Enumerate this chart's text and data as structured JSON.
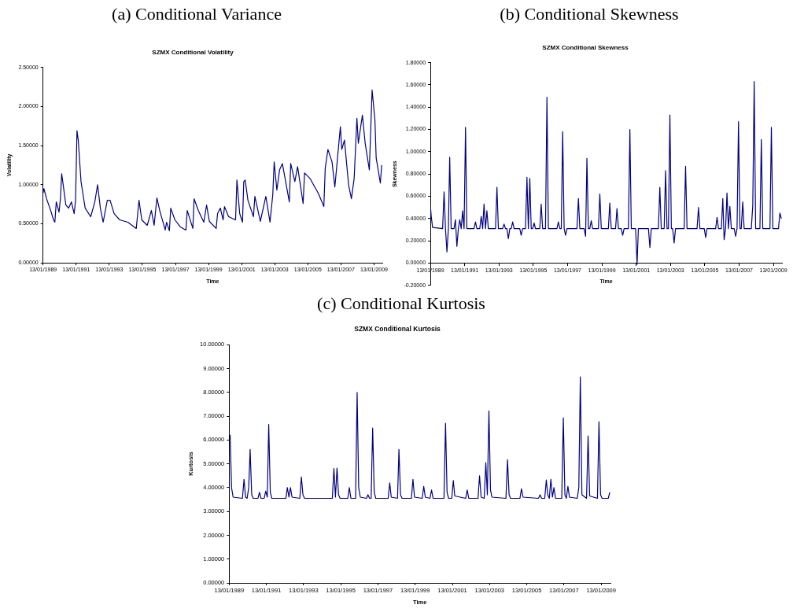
{
  "chart_data": [
    {
      "type": "line",
      "subtitle": "(a) Conditional Variance",
      "title": "SZMX Conditional Volatility",
      "xlabel": "Time",
      "ylabel": "Volatility",
      "marker": "none",
      "xlim": [
        "1989-01-13",
        "2009-07-15"
      ],
      "xticks": [
        {
          "value": "1989-01-13",
          "label": "13/01/1989"
        },
        {
          "value": "1991-01-13",
          "label": "13/01/1991"
        },
        {
          "value": "1993-01-13",
          "label": "13/01/1993"
        },
        {
          "value": "1995-01-13",
          "label": "13/01/1995"
        },
        {
          "value": "1997-01-13",
          "label": "13/01/1997"
        },
        {
          "value": "1999-01-13",
          "label": "13/01/1999"
        },
        {
          "value": "2001-01-13",
          "label": "13/01/2001"
        },
        {
          "value": "2003-01-13",
          "label": "13/01/2003"
        },
        {
          "value": "2005-01-13",
          "label": "13/01/2005"
        },
        {
          "value": "2007-01-13",
          "label": "13/01/2007"
        },
        {
          "value": "2009-01-13",
          "label": "13/01/2009"
        }
      ],
      "ylim": [
        0,
        2.5
      ],
      "yticks": [
        {
          "value": 0,
          "label": "0.00000"
        },
        {
          "value": 0.5,
          "label": "0.50000"
        },
        {
          "value": 1,
          "label": "1.00000"
        },
        {
          "value": 1.5,
          "label": "1.50000"
        },
        {
          "value": 2,
          "label": "2.00000"
        },
        {
          "value": 2.5,
          "label": "2.50000"
        }
      ],
      "series": [
        {
          "color": "#000080",
          "x": [
            "1989-01-13",
            "1989-02",
            "1989-04",
            "1989-07",
            "1989-09",
            "1989-10",
            "1989-11",
            "1990-01",
            "1990-02",
            "1990-03",
            "1990-06",
            "1990-08",
            "1990-10",
            "1990-12",
            "1991-01",
            "1991-02",
            "1991-03",
            "1991-05",
            "1991-08",
            "1991-12",
            "1992-03",
            "1992-05",
            "1992-07",
            "1992-09",
            "1992-12",
            "1993-02",
            "1993-05",
            "1993-09",
            "1994-03",
            "1994-09",
            "1994-11",
            "1995-01",
            "1995-05",
            "1995-08",
            "1995-10",
            "1995-12",
            "1996-02",
            "1996-06",
            "1996-07",
            "1996-09",
            "1996-10",
            "1997-01",
            "1997-05",
            "1997-09",
            "1997-10",
            "1998-02",
            "1998-03",
            "1998-06",
            "1998-10",
            "1998-12",
            "1999-02",
            "1999-07",
            "1999-08",
            "1999-10",
            "1999-12",
            "2000-01",
            "2000-04",
            "2000-09",
            "2000-10",
            "2000-12",
            "2001-02",
            "2001-03",
            "2001-04",
            "2001-06",
            "2001-10",
            "2001-11",
            "2002-03",
            "2002-07",
            "2002-10",
            "2002-12",
            "2003-01",
            "2003-03",
            "2003-05",
            "2003-07",
            "2003-12",
            "2004-01",
            "2004-04",
            "2004-06",
            "2004-10",
            "2004-11",
            "2005-03",
            "2005-09",
            "2006-01",
            "2006-02",
            "2006-04",
            "2006-07",
            "2006-09",
            "2007-01",
            "2007-02",
            "2007-04",
            "2007-07",
            "2007-09",
            "2007-11",
            "2008-01",
            "2008-02",
            "2008-05",
            "2008-07",
            "2008-10",
            "2008-12",
            "2009-02",
            "2009-03",
            "2009-06",
            "2009-07"
          ],
          "values": [
            0.89,
            0.95,
            0.82,
            0.67,
            0.55,
            0.52,
            0.78,
            0.65,
            0.82,
            1.14,
            0.74,
            0.7,
            0.78,
            0.63,
            0.8,
            1.69,
            1.57,
            1.04,
            0.7,
            0.59,
            0.78,
            1.0,
            0.7,
            0.52,
            0.8,
            0.8,
            0.63,
            0.55,
            0.52,
            0.44,
            0.8,
            0.55,
            0.48,
            0.67,
            0.48,
            0.83,
            0.67,
            0.42,
            0.52,
            0.41,
            0.7,
            0.55,
            0.46,
            0.42,
            0.67,
            0.44,
            0.82,
            0.67,
            0.52,
            0.74,
            0.53,
            0.44,
            0.63,
            0.7,
            0.55,
            0.72,
            0.59,
            0.55,
            1.06,
            0.63,
            0.52,
            1.04,
            1.06,
            0.8,
            0.59,
            0.85,
            0.53,
            0.85,
            0.52,
            0.87,
            1.29,
            0.93,
            1.19,
            1.27,
            0.78,
            1.27,
            1.04,
            1.23,
            0.76,
            1.15,
            1.08,
            0.89,
            0.72,
            1.21,
            1.45,
            1.29,
            0.97,
            1.74,
            1.45,
            1.57,
            1.0,
            0.82,
            1.08,
            1.85,
            1.53,
            1.89,
            1.53,
            1.19,
            2.21,
            1.83,
            1.34,
            1.02,
            1.25
          ]
        }
      ]
    },
    {
      "type": "line",
      "subtitle": "(b) Conditional Skewness",
      "title": "SZMX Conditional Skewness",
      "xlabel": "Time",
      "ylabel": "Skewness",
      "marker": "none",
      "xlim": [
        "1989-01-13",
        "2009-07-15"
      ],
      "xticks": [
        {
          "value": "1989-01-13",
          "label": "13/01/1989"
        },
        {
          "value": "1991-01-13",
          "label": "13/01/1991"
        },
        {
          "value": "1993-01-13",
          "label": "13/01/1993"
        },
        {
          "value": "1995-01-13",
          "label": "13/01/1995"
        },
        {
          "value": "1997-01-13",
          "label": "13/01/1997"
        },
        {
          "value": "1999-01-13",
          "label": "13/01/1999"
        },
        {
          "value": "2001-01-13",
          "label": "13/01/2001"
        },
        {
          "value": "2003-01-13",
          "label": "13/01/2003"
        },
        {
          "value": "2005-01-13",
          "label": "13/01/2005"
        },
        {
          "value": "2007-01-13",
          "label": "13/01/2007"
        },
        {
          "value": "2009-01-13",
          "label": "13/01/2009"
        }
      ],
      "ylim": [
        -0.2,
        1.8
      ],
      "yticks": [
        {
          "value": -0.2,
          "label": "-0.20000"
        },
        {
          "value": 0,
          "label": "0.00000"
        },
        {
          "value": 0.2,
          "label": "0.20000"
        },
        {
          "value": 0.4,
          "label": "0.40000"
        },
        {
          "value": 0.6,
          "label": "0.60000"
        },
        {
          "value": 0.8,
          "label": "0.80000"
        },
        {
          "value": 1,
          "label": "1.00000"
        },
        {
          "value": 1.2,
          "label": "1.20000"
        },
        {
          "value": 1.4,
          "label": "1.40000"
        },
        {
          "value": 1.6,
          "label": "1.60000"
        },
        {
          "value": 1.8,
          "label": "1.80000"
        }
      ],
      "series": [
        {
          "color": "#000080",
          "x": [
            "1989-01-13",
            "1989-02",
            "1989-03",
            "1989-10",
            "1989-11",
            "1989-12",
            "1990-01",
            "1990-02",
            "1990-03",
            "1990-04",
            "1990-06",
            "1990-07",
            "1990-08",
            "1990-09",
            "1990-10",
            "1990-11",
            "1990-12",
            "1991-01",
            "1991-02",
            "1991-03",
            "1991-08",
            "1991-09",
            "1991-10",
            "1991-12",
            "1992-01",
            "1992-02",
            "1992-03",
            "1992-04",
            "1992-05",
            "1992-06",
            "1992-11",
            "1992-12",
            "1993-01",
            "1993-04",
            "1993-05",
            "1993-06",
            "1993-07",
            "1993-08",
            "1993-09",
            "1993-10",
            "1993-11",
            "1993-12",
            "1994-04",
            "1994-05",
            "1994-06",
            "1994-08",
            "1994-09",
            "1994-10",
            "1994-11",
            "1994-12",
            "1995-01",
            "1995-02",
            "1995-03",
            "1995-06",
            "1995-07",
            "1995-08",
            "1995-10",
            "1995-11",
            "1995-12",
            "1996-06",
            "1996-07",
            "1996-08",
            "1996-09",
            "1996-10",
            "1996-11",
            "1996-12",
            "1997-01",
            "1997-08",
            "1997-09",
            "1997-10",
            "1998-01",
            "1998-02",
            "1998-03",
            "1998-04",
            "1998-05",
            "1998-06",
            "1998-07",
            "1998-11",
            "1998-12",
            "1999-01",
            "1999-06",
            "1999-07",
            "1999-08",
            "1999-11",
            "1999-12",
            "2000-01",
            "2000-03",
            "2000-04",
            "2000-05",
            "2000-08",
            "2000-09",
            "2000-10",
            "2001-01",
            "2001-02",
            "2001-03",
            "2001-10",
            "2001-11",
            "2001-12",
            "2002-05",
            "2002-06",
            "2002-07",
            "2002-09",
            "2002-10",
            "2002-11",
            "2002-12",
            "2003-01",
            "2003-02",
            "2003-03",
            "2003-04",
            "2003-05",
            "2003-11",
            "2003-12",
            "2004-01",
            "2004-08",
            "2004-09",
            "2004-10",
            "2005-01",
            "2005-02",
            "2005-03",
            "2005-09",
            "2005-10",
            "2005-11",
            "2006-01",
            "2006-02",
            "2006-03",
            "2006-04",
            "2006-05",
            "2006-06",
            "2006-07",
            "2006-08",
            "2006-10",
            "2006-11",
            "2006-12",
            "2007-01",
            "2007-02",
            "2007-03",
            "2007-04",
            "2007-05",
            "2007-10",
            "2007-11",
            "2007-12",
            "2008-01",
            "2008-04",
            "2008-05",
            "2008-06",
            "2008-11",
            "2008-12",
            "2009-01",
            "2009-05",
            "2009-06",
            "2009-07"
          ],
          "values": [
            0.52,
            0.42,
            0.32,
            0.31,
            0.64,
            0.31,
            0.1,
            0.31,
            0.95,
            0.31,
            0.31,
            0.39,
            0.15,
            0.31,
            0.39,
            0.31,
            0.47,
            0.31,
            1.22,
            0.31,
            0.31,
            0.37,
            0.31,
            0.31,
            0.42,
            0.31,
            0.53,
            0.31,
            0.47,
            0.31,
            0.31,
            0.68,
            0.31,
            0.31,
            0.35,
            0.31,
            0.31,
            0.22,
            0.31,
            0.31,
            0.37,
            0.31,
            0.31,
            0.25,
            0.31,
            0.31,
            0.77,
            0.31,
            0.76,
            0.31,
            0.31,
            0.36,
            0.31,
            0.31,
            0.53,
            0.31,
            0.31,
            1.49,
            0.31,
            0.31,
            0.37,
            0.31,
            0.31,
            1.18,
            0.31,
            0.25,
            0.31,
            0.31,
            0.58,
            0.31,
            0.31,
            0.24,
            0.94,
            0.31,
            0.31,
            0.38,
            0.31,
            0.31,
            0.62,
            0.31,
            0.31,
            0.54,
            0.31,
            0.31,
            0.49,
            0.31,
            0.31,
            0.25,
            0.31,
            0.31,
            1.2,
            0.31,
            0.31,
            -0.01,
            0.31,
            0.31,
            0.14,
            0.31,
            0.31,
            0.68,
            0.31,
            0.31,
            0.83,
            0.31,
            0.31,
            1.33,
            0.31,
            0.31,
            0.18,
            0.31,
            0.31,
            0.87,
            0.31,
            0.31,
            0.5,
            0.31,
            0.31,
            0.23,
            0.31,
            0.31,
            0.41,
            0.31,
            0.31,
            0.58,
            0.21,
            0.31,
            0.63,
            0.31,
            0.51,
            0.31,
            0.31,
            0.24,
            0.31,
            1.27,
            0.31,
            0.31,
            0.55,
            0.31,
            0.31,
            0.52,
            1.63,
            0.31,
            0.31,
            1.11,
            0.31,
            0.31,
            1.22,
            0.31,
            0.31,
            0.45,
            0.4
          ]
        }
      ]
    },
    {
      "type": "line",
      "subtitle": "(c) Conditional Kurtosis",
      "title": "SZMX Conditional Kurtosis",
      "xlabel": "Time",
      "ylabel": "Kurtosis",
      "marker": "none",
      "xlim": [
        "1989-01-13",
        "2009-07-15"
      ],
      "xticks": [
        {
          "value": "1989-01-13",
          "label": "13/01/1989"
        },
        {
          "value": "1991-01-13",
          "label": "13/01/1991"
        },
        {
          "value": "1993-01-13",
          "label": "13/01/1993"
        },
        {
          "value": "1995-01-13",
          "label": "13/01/1995"
        },
        {
          "value": "1997-01-13",
          "label": "13/01/1997"
        },
        {
          "value": "1999-01-13",
          "label": "13/01/1999"
        },
        {
          "value": "2001-01-13",
          "label": "13/01/2001"
        },
        {
          "value": "2003-01-13",
          "label": "13/01/2003"
        },
        {
          "value": "2005-01-13",
          "label": "13/01/2005"
        },
        {
          "value": "2007-01-13",
          "label": "13/01/2007"
        },
        {
          "value": "2009-01-13",
          "label": "13/01/2009"
        }
      ],
      "ylim": [
        0,
        10
      ],
      "yticks": [
        {
          "value": 0,
          "label": "0.00000"
        },
        {
          "value": 1,
          "label": "1.00000"
        },
        {
          "value": 2,
          "label": "2.00000"
        },
        {
          "value": 3,
          "label": "3.00000"
        },
        {
          "value": 4,
          "label": "4.00000"
        },
        {
          "value": 5,
          "label": "5.00000"
        },
        {
          "value": 6,
          "label": "6.00000"
        },
        {
          "value": 7,
          "label": "7.00000"
        },
        {
          "value": 8,
          "label": "8.00000"
        },
        {
          "value": 9,
          "label": "9.00000"
        },
        {
          "value": 10,
          "label": "10.00000"
        }
      ],
      "series": [
        {
          "color": "#000080",
          "x": [
            "1989-01-13",
            "1989-02",
            "1989-03",
            "1989-04",
            "1989-10",
            "1989-11",
            "1989-12",
            "1990-01",
            "1990-02",
            "1990-03",
            "1990-04",
            "1990-05",
            "1990-08",
            "1990-09",
            "1990-10",
            "1990-12",
            "1991-01",
            "1991-02",
            "1991-03",
            "1991-04",
            "1991-05",
            "1992-02",
            "1992-03",
            "1992-04",
            "1992-05",
            "1992-06",
            "1992-11",
            "1992-12",
            "1993-01",
            "1993-02",
            "1994-08",
            "1994-09",
            "1994-10",
            "1994-11",
            "1994-12",
            "1995-01",
            "1995-06",
            "1995-07",
            "1995-08",
            "1995-11",
            "1995-12",
            "1996-01",
            "1996-02",
            "1996-06",
            "1996-07",
            "1996-08",
            "1996-09",
            "1996-10",
            "1996-11",
            "1996-12",
            "1997-08",
            "1997-09",
            "1997-10",
            "1998-02",
            "1998-03",
            "1998-04",
            "1998-05",
            "1998-11",
            "1998-12",
            "1999-01",
            "1999-06",
            "1999-07",
            "1999-08",
            "1999-11",
            "1999-12",
            "2000-01",
            "2000-08",
            "2000-09",
            "2000-10",
            "2000-11",
            "2001-01",
            "2001-02",
            "2001-03",
            "2001-10",
            "2001-11",
            "2001-12",
            "2002-06",
            "2002-07",
            "2002-08",
            "2002-10",
            "2002-11",
            "2002-12",
            "2003-01",
            "2003-02",
            "2003-03",
            "2003-12",
            "2004-01",
            "2004-02",
            "2004-03",
            "2004-09",
            "2004-10",
            "2004-11",
            "2005-09",
            "2005-10",
            "2005-11",
            "2006-01",
            "2006-02",
            "2006-03",
            "2006-04",
            "2006-05",
            "2006-06",
            "2006-07",
            "2006-08",
            "2006-12",
            "2007-01",
            "2007-02",
            "2007-03",
            "2007-04",
            "2007-05",
            "2007-10",
            "2007-11",
            "2007-12",
            "2008-01",
            "2008-04",
            "2008-05",
            "2008-06",
            "2008-11",
            "2008-12",
            "2009-01",
            "2009-02",
            "2009-06",
            "2009-07"
          ],
          "values": [
            6.2,
            6.2,
            4.0,
            3.6,
            3.55,
            4.35,
            3.6,
            3.55,
            4.0,
            5.6,
            3.7,
            3.55,
            3.55,
            3.8,
            3.55,
            3.55,
            3.85,
            3.6,
            6.65,
            3.8,
            3.55,
            3.55,
            4.0,
            3.6,
            4.0,
            3.6,
            3.55,
            4.45,
            3.7,
            3.55,
            3.55,
            4.8,
            3.6,
            4.82,
            3.7,
            3.55,
            3.55,
            4.0,
            3.55,
            3.55,
            8.0,
            4.0,
            3.6,
            3.55,
            3.7,
            3.55,
            3.55,
            6.5,
            3.8,
            3.55,
            3.55,
            4.2,
            3.6,
            3.55,
            5.6,
            3.7,
            3.55,
            3.55,
            4.35,
            3.6,
            3.55,
            4.05,
            3.6,
            3.55,
            3.9,
            3.55,
            3.55,
            6.7,
            3.8,
            3.55,
            3.55,
            4.3,
            3.65,
            3.55,
            3.9,
            3.55,
            3.55,
            4.5,
            3.6,
            3.55,
            5.05,
            3.7,
            7.22,
            3.9,
            3.6,
            3.55,
            5.17,
            3.7,
            3.55,
            3.55,
            3.95,
            3.6,
            3.55,
            3.7,
            3.55,
            3.55,
            4.32,
            3.7,
            3.55,
            4.35,
            3.6,
            4.0,
            3.55,
            3.55,
            6.93,
            3.7,
            3.55,
            4.05,
            3.6,
            3.55,
            4.0,
            8.65,
            3.7,
            3.55,
            6.17,
            3.65,
            3.55,
            6.77,
            3.7,
            3.55,
            3.55,
            3.8
          ]
        }
      ]
    }
  ]
}
